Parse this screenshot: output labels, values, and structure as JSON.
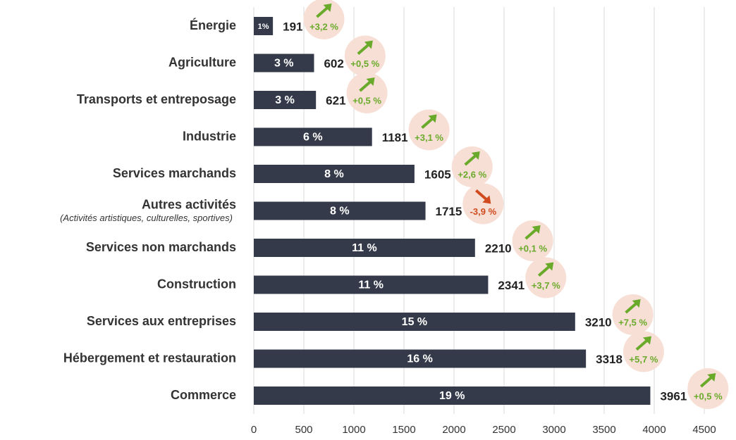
{
  "chart_data": {
    "type": "bar",
    "orientation": "horizontal",
    "categories": [
      "Énergie",
      "Agriculture",
      "Transports et entreposage",
      "Industrie",
      "Services marchands",
      "Autres activités",
      "Services non marchands",
      "Construction",
      "Services aux entreprises",
      "Hébergement et restauration",
      "Commerce"
    ],
    "notes": [
      {
        "category": "Autres activités",
        "text": "(Activités artistiques, culturelles, sportives)"
      }
    ],
    "values": [
      191,
      602,
      621,
      1181,
      1605,
      1715,
      2210,
      2341,
      3210,
      3318,
      3961
    ],
    "share_labels": [
      "1%",
      "3 %",
      "3 %",
      "6 %",
      "8 %",
      "8 %",
      "11 %",
      "11 %",
      "15 %",
      "16 %",
      "19 %"
    ],
    "change_labels": [
      "+3,2 %",
      "+0,5 %",
      "+0,5 %",
      "+3,1 %",
      "+2,6 %",
      "-3,9 %",
      "+0,1 %",
      "+3,7 %",
      "+7,5 %",
      "+5,7 %",
      "+0,5 %"
    ],
    "color": "#343a4a",
    "up_color": "#6aaa2a",
    "down_color": "#d04a1e",
    "xlim": [
      0,
      4500
    ],
    "xticks": [
      0,
      500,
      1000,
      1500,
      2000,
      2500,
      3000,
      3500,
      4000,
      4500
    ],
    "grid": true
  }
}
